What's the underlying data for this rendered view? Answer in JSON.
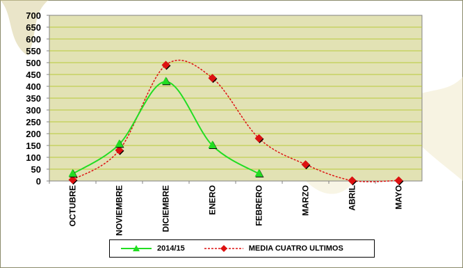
{
  "chart_data": {
    "type": "line",
    "categories": [
      "OCTUBRE",
      "NOVIEMBRE",
      "DICIEMBRE",
      "ENERO",
      "FEBRERO",
      "MARZO",
      "ABRIL",
      "MAYO"
    ],
    "series": [
      {
        "name": "2014/15",
        "values": [
          30,
          155,
          420,
          150,
          30,
          null,
          null,
          null
        ],
        "color": "#22dd22",
        "marker": "triangle",
        "line_style": "solid"
      },
      {
        "name": "MEDIA CUATRO ULTIMOS",
        "values": [
          5,
          130,
          490,
          435,
          180,
          70,
          2,
          2
        ],
        "color": "#dd1111",
        "marker": "diamond",
        "line_style": "dashed"
      }
    ],
    "y_ticks": [
      "0",
      "50",
      "100",
      "150",
      "200",
      "250",
      "300",
      "350",
      "400",
      "450",
      "500",
      "550",
      "600",
      "650",
      "700"
    ],
    "ylim": [
      0,
      700
    ],
    "grid": true,
    "plot_background": "#e2e2b4",
    "legend_placement": "bottom",
    "title": "",
    "xlabel": "",
    "ylabel": ""
  }
}
